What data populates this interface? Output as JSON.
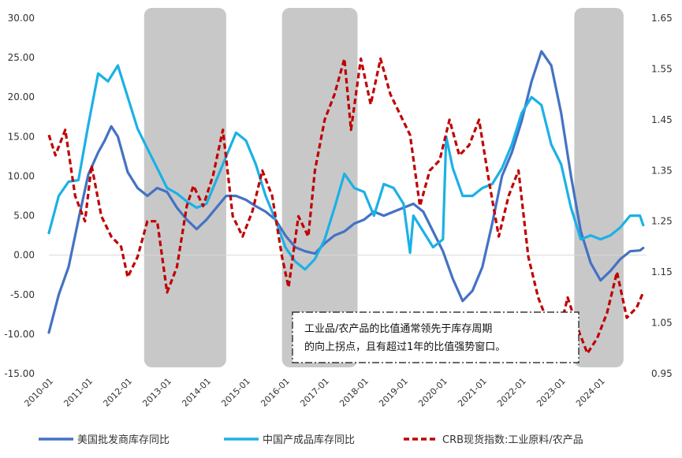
{
  "chart_data": {
    "type": "line",
    "title": "",
    "xlabel": "",
    "ylabel": "",
    "left_axis": {
      "ylim": [
        -15,
        30
      ],
      "ticks": [
        "-15.00",
        "-10.00",
        "-5.00",
        "0.00",
        "5.00",
        "10.00",
        "15.00",
        "20.00",
        "25.00",
        "30.00"
      ]
    },
    "right_axis": {
      "ylim": [
        0.95,
        1.65
      ],
      "ticks": [
        "0.95",
        "1.05",
        "1.15",
        "1.25",
        "1.35",
        "1.45",
        "1.55",
        "1.65"
      ]
    },
    "x_ticks": [
      "2010-01",
      "2011-01",
      "2012-01",
      "2013-01",
      "2014-01",
      "2015-01",
      "2016-01",
      "2017-01",
      "2018-01",
      "2019-01",
      "2020-01",
      "2021-01",
      "2022-01",
      "2023-01",
      "2024-01"
    ],
    "x_range": [
      "2010-01",
      "2025-03"
    ],
    "grid": false,
    "legend_position": "bottom",
    "shaded_periods": [
      {
        "start": "2012-06",
        "end": "2014-07"
      },
      {
        "start": "2015-12",
        "end": "2017-11"
      },
      {
        "start": "2023-05",
        "end": "2024-08"
      }
    ],
    "annotation": {
      "line1": "工业品/农产品的比值通常领先于库存周期",
      "line2": "的向上拐点，且有超过1年的比值强势窗口。"
    },
    "series": [
      {
        "name": "美国批发商库存同比",
        "axis": "left",
        "color": "#4472C4",
        "style": "solid",
        "points": [
          [
            "2010-01",
            -9.8
          ],
          [
            "2010-04",
            -5.0
          ],
          [
            "2010-07",
            -1.5
          ],
          [
            "2010-10",
            4.5
          ],
          [
            "2011-01",
            10.2
          ],
          [
            "2011-04",
            13.0
          ],
          [
            "2011-06",
            14.5
          ],
          [
            "2011-08",
            16.3
          ],
          [
            "2011-10",
            15.0
          ],
          [
            "2012-01",
            10.5
          ],
          [
            "2012-04",
            8.5
          ],
          [
            "2012-07",
            7.5
          ],
          [
            "2012-10",
            8.5
          ],
          [
            "2013-01",
            8.0
          ],
          [
            "2013-04",
            6.0
          ],
          [
            "2013-07",
            4.5
          ],
          [
            "2013-10",
            3.3
          ],
          [
            "2014-01",
            4.5
          ],
          [
            "2014-04",
            6.0
          ],
          [
            "2014-07",
            7.5
          ],
          [
            "2014-10",
            7.5
          ],
          [
            "2015-01",
            7.0
          ],
          [
            "2015-04",
            6.2
          ],
          [
            "2015-07",
            5.5
          ],
          [
            "2015-10",
            4.5
          ],
          [
            "2016-01",
            2.5
          ],
          [
            "2016-04",
            1.0
          ],
          [
            "2016-07",
            0.5
          ],
          [
            "2016-10",
            0.2
          ],
          [
            "2017-01",
            1.5
          ],
          [
            "2017-04",
            2.5
          ],
          [
            "2017-07",
            3.0
          ],
          [
            "2017-10",
            4.0
          ],
          [
            "2018-01",
            4.5
          ],
          [
            "2018-04",
            5.5
          ],
          [
            "2018-07",
            5.0
          ],
          [
            "2018-10",
            5.5
          ],
          [
            "2019-01",
            6.0
          ],
          [
            "2019-04",
            6.5
          ],
          [
            "2019-07",
            5.5
          ],
          [
            "2019-10",
            3.0
          ],
          [
            "2020-01",
            0.5
          ],
          [
            "2020-04",
            -3.0
          ],
          [
            "2020-07",
            -5.8
          ],
          [
            "2020-10",
            -4.5
          ],
          [
            "2021-01",
            -1.5
          ],
          [
            "2021-04",
            4.0
          ],
          [
            "2021-07",
            10.0
          ],
          [
            "2021-10",
            13.0
          ],
          [
            "2022-01",
            17.0
          ],
          [
            "2022-04",
            22.0
          ],
          [
            "2022-07",
            25.8
          ],
          [
            "2022-10",
            24.0
          ],
          [
            "2023-01",
            18.0
          ],
          [
            "2023-04",
            10.0
          ],
          [
            "2023-07",
            3.0
          ],
          [
            "2023-10",
            -1.0
          ],
          [
            "2024-01",
            -3.2
          ],
          [
            "2024-04",
            -2.0
          ],
          [
            "2024-07",
            -0.5
          ],
          [
            "2024-10",
            0.5
          ],
          [
            "2025-01",
            0.6
          ],
          [
            "2025-02",
            0.9
          ]
        ]
      },
      {
        "name": "中国产成品库存同比",
        "axis": "left",
        "color": "#1BB1E6",
        "style": "solid",
        "points": [
          [
            "2010-01",
            2.8
          ],
          [
            "2010-04",
            7.5
          ],
          [
            "2010-07",
            9.3
          ],
          [
            "2010-10",
            9.5
          ],
          [
            "2011-01",
            16.5
          ],
          [
            "2011-04",
            23.0
          ],
          [
            "2011-07",
            22.0
          ],
          [
            "2011-10",
            24.0
          ],
          [
            "2012-01",
            20.0
          ],
          [
            "2012-04",
            16.0
          ],
          [
            "2012-07",
            13.5
          ],
          [
            "2012-10",
            11.0
          ],
          [
            "2013-01",
            8.5
          ],
          [
            "2013-04",
            7.8
          ],
          [
            "2013-07",
            6.8
          ],
          [
            "2013-10",
            6.0
          ],
          [
            "2014-01",
            6.5
          ],
          [
            "2014-04",
            9.5
          ],
          [
            "2014-07",
            12.5
          ],
          [
            "2014-10",
            15.5
          ],
          [
            "2015-01",
            14.5
          ],
          [
            "2015-04",
            11.5
          ],
          [
            "2015-07",
            7.5
          ],
          [
            "2015-10",
            4.5
          ],
          [
            "2016-01",
            1.0
          ],
          [
            "2016-04",
            -0.8
          ],
          [
            "2016-07",
            -1.8
          ],
          [
            "2016-10",
            -0.5
          ],
          [
            "2017-01",
            2.0
          ],
          [
            "2017-04",
            6.0
          ],
          [
            "2017-07",
            10.3
          ],
          [
            "2017-10",
            8.5
          ],
          [
            "2018-01",
            8.0
          ],
          [
            "2018-04",
            5.0
          ],
          [
            "2018-07",
            9.0
          ],
          [
            "2018-10",
            8.5
          ],
          [
            "2019-01",
            6.5
          ],
          [
            "2019-03",
            0.3
          ],
          [
            "2019-04",
            5.0
          ],
          [
            "2019-07",
            3.0
          ],
          [
            "2019-10",
            1.0
          ],
          [
            "2020-01",
            2.0
          ],
          [
            "2020-02",
            15.0
          ],
          [
            "2020-04",
            11.0
          ],
          [
            "2020-07",
            7.5
          ],
          [
            "2020-10",
            7.5
          ],
          [
            "2021-01",
            8.5
          ],
          [
            "2021-04",
            9.0
          ],
          [
            "2021-07",
            11.0
          ],
          [
            "2021-10",
            14.0
          ],
          [
            "2022-01",
            18.0
          ],
          [
            "2022-04",
            20.0
          ],
          [
            "2022-07",
            19.0
          ],
          [
            "2022-10",
            14.0
          ],
          [
            "2023-01",
            11.5
          ],
          [
            "2023-04",
            6.0
          ],
          [
            "2023-07",
            2.0
          ],
          [
            "2023-10",
            2.5
          ],
          [
            "2024-01",
            2.0
          ],
          [
            "2024-04",
            2.5
          ],
          [
            "2024-07",
            3.5
          ],
          [
            "2024-10",
            5.0
          ],
          [
            "2025-01",
            5.0
          ],
          [
            "2025-02",
            3.8
          ]
        ]
      },
      {
        "name": "CRB现货指数:工业原料/农产品",
        "axis": "right",
        "color": "#C00000",
        "style": "dashed",
        "points": [
          [
            "2010-01",
            1.42
          ],
          [
            "2010-03",
            1.38
          ],
          [
            "2010-06",
            1.43
          ],
          [
            "2010-09",
            1.3
          ],
          [
            "2010-12",
            1.25
          ],
          [
            "2011-02",
            1.36
          ],
          [
            "2011-05",
            1.26
          ],
          [
            "2011-08",
            1.22
          ],
          [
            "2011-11",
            1.2
          ],
          [
            "2012-01",
            1.14
          ],
          [
            "2012-04",
            1.18
          ],
          [
            "2012-07",
            1.25
          ],
          [
            "2012-10",
            1.25
          ],
          [
            "2013-01",
            1.11
          ],
          [
            "2013-04",
            1.16
          ],
          [
            "2013-07",
            1.28
          ],
          [
            "2013-09",
            1.32
          ],
          [
            "2013-12",
            1.28
          ],
          [
            "2014-03",
            1.34
          ],
          [
            "2014-06",
            1.43
          ],
          [
            "2014-09",
            1.26
          ],
          [
            "2014-12",
            1.22
          ],
          [
            "2015-03",
            1.27
          ],
          [
            "2015-06",
            1.35
          ],
          [
            "2015-09",
            1.3
          ],
          [
            "2015-12",
            1.18
          ],
          [
            "2016-02",
            1.12
          ],
          [
            "2016-05",
            1.26
          ],
          [
            "2016-08",
            1.22
          ],
          [
            "2016-10",
            1.35
          ],
          [
            "2017-01",
            1.45
          ],
          [
            "2017-04",
            1.5
          ],
          [
            "2017-07",
            1.57
          ],
          [
            "2017-09",
            1.43
          ],
          [
            "2017-12",
            1.57
          ],
          [
            "2018-03",
            1.48
          ],
          [
            "2018-06",
            1.57
          ],
          [
            "2018-09",
            1.5
          ],
          [
            "2018-12",
            1.46
          ],
          [
            "2019-03",
            1.42
          ],
          [
            "2019-06",
            1.28
          ],
          [
            "2019-09",
            1.35
          ],
          [
            "2019-12",
            1.37
          ],
          [
            "2020-03",
            1.45
          ],
          [
            "2020-06",
            1.38
          ],
          [
            "2020-09",
            1.4
          ],
          [
            "2020-12",
            1.45
          ],
          [
            "2021-03",
            1.33
          ],
          [
            "2021-06",
            1.22
          ],
          [
            "2021-09",
            1.3
          ],
          [
            "2021-12",
            1.35
          ],
          [
            "2022-03",
            1.18
          ],
          [
            "2022-06",
            1.1
          ],
          [
            "2022-09",
            1.05
          ],
          [
            "2022-12",
            1.02
          ],
          [
            "2023-03",
            1.1
          ],
          [
            "2023-06",
            1.04
          ],
          [
            "2023-09",
            0.99
          ],
          [
            "2023-12",
            1.02
          ],
          [
            "2024-03",
            1.07
          ],
          [
            "2024-06",
            1.15
          ],
          [
            "2024-09",
            1.06
          ],
          [
            "2024-12",
            1.08
          ],
          [
            "2025-02",
            1.11
          ]
        ]
      }
    ]
  }
}
